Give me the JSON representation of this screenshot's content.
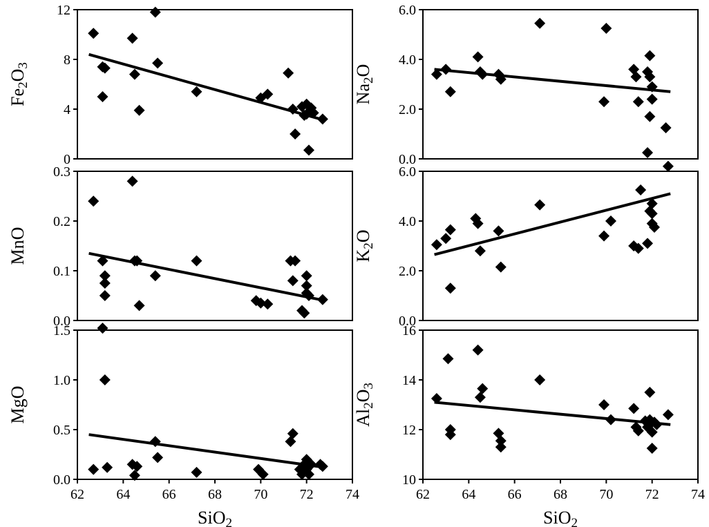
{
  "figure": {
    "background": "#ffffff",
    "marker_color": "#000000",
    "line_color": "#000000",
    "axis_color": "#000000",
    "xlabel": "SiO2",
    "xlabel_parts": [
      {
        "text": "SiO"
      },
      {
        "text": "2",
        "sub": true
      }
    ],
    "xlim": [
      62,
      74
    ],
    "xticks": [
      {
        "v": 62,
        "label": "62"
      },
      {
        "v": 64,
        "label": "64"
      },
      {
        "v": 66,
        "label": "66"
      },
      {
        "v": 68,
        "label": "68"
      },
      {
        "v": 70,
        "label": "70"
      },
      {
        "v": 72,
        "label": "72"
      },
      {
        "v": 74,
        "label": "74"
      }
    ]
  },
  "chart_data": [
    {
      "type": "scatter",
      "id": "fe2o3",
      "col": 0,
      "row": 0,
      "title": "",
      "ylabel": "Fe2O3",
      "ylabel_parts": [
        {
          "text": "Fe"
        },
        {
          "text": "2",
          "sub": true
        },
        {
          "text": "O"
        },
        {
          "text": "3",
          "sub": true
        }
      ],
      "ylim": [
        0,
        12
      ],
      "yticks": [
        {
          "v": 0,
          "label": "0"
        },
        {
          "v": 4,
          "label": "4"
        },
        {
          "v": 8,
          "label": "8"
        },
        {
          "v": 12,
          "label": "12"
        }
      ],
      "points": [
        [
          62.7,
          10.1
        ],
        [
          63.1,
          7.4
        ],
        [
          63.2,
          7.3
        ],
        [
          63.1,
          5.0
        ],
        [
          64.4,
          9.7
        ],
        [
          64.5,
          6.8
        ],
        [
          64.7,
          3.9
        ],
        [
          65.4,
          11.8
        ],
        [
          65.5,
          7.7
        ],
        [
          67.2,
          5.4
        ],
        [
          70.0,
          4.9
        ],
        [
          70.3,
          5.2
        ],
        [
          71.2,
          6.9
        ],
        [
          71.4,
          4.0
        ],
        [
          71.5,
          2.0
        ],
        [
          71.8,
          4.2
        ],
        [
          71.9,
          3.5
        ],
        [
          72.0,
          4.4
        ],
        [
          72.0,
          3.6
        ],
        [
          72.1,
          0.7
        ],
        [
          72.2,
          4.1
        ],
        [
          72.3,
          3.7
        ],
        [
          72.7,
          3.2
        ]
      ],
      "trend": {
        "x1": 62.5,
        "y1": 8.4,
        "x2": 72.8,
        "y2": 3.1
      }
    },
    {
      "type": "scatter",
      "id": "na2o",
      "col": 1,
      "row": 0,
      "title": "",
      "ylabel": "Na2O",
      "ylabel_parts": [
        {
          "text": "Na"
        },
        {
          "text": "2",
          "sub": true
        },
        {
          "text": "O"
        }
      ],
      "ylim": [
        0,
        6
      ],
      "yticks": [
        {
          "v": 0,
          "label": "0.0"
        },
        {
          "v": 2,
          "label": "2.0"
        },
        {
          "v": 4,
          "label": "4.0"
        },
        {
          "v": 6,
          "label": "6.0"
        }
      ],
      "points": [
        [
          62.6,
          3.4
        ],
        [
          63.0,
          3.6
        ],
        [
          63.2,
          2.7
        ],
        [
          64.4,
          4.1
        ],
        [
          64.5,
          3.5
        ],
        [
          64.6,
          3.4
        ],
        [
          65.3,
          3.4
        ],
        [
          65.4,
          3.2
        ],
        [
          67.1,
          5.45
        ],
        [
          69.9,
          2.3
        ],
        [
          70.0,
          5.25
        ],
        [
          71.2,
          3.6
        ],
        [
          71.3,
          3.3
        ],
        [
          71.4,
          2.3
        ],
        [
          71.8,
          3.5
        ],
        [
          71.9,
          4.15
        ],
        [
          71.9,
          3.3
        ],
        [
          72.0,
          2.9
        ],
        [
          72.0,
          2.4
        ],
        [
          71.9,
          1.7
        ],
        [
          71.8,
          0.25
        ],
        [
          72.6,
          1.25
        ]
      ],
      "trend": {
        "x1": 62.5,
        "y1": 3.6,
        "x2": 72.8,
        "y2": 2.7
      }
    },
    {
      "type": "scatter",
      "id": "mno",
      "col": 0,
      "row": 1,
      "title": "",
      "ylabel": "MnO",
      "ylabel_parts": [
        {
          "text": "MnO"
        }
      ],
      "ylim": [
        0,
        0.3
      ],
      "yticks": [
        {
          "v": 0,
          "label": "0.0"
        },
        {
          "v": 0.1,
          "label": "0.1"
        },
        {
          "v": 0.2,
          "label": "0.2"
        },
        {
          "v": 0.3,
          "label": "0.3"
        }
      ],
      "points": [
        [
          62.7,
          0.24
        ],
        [
          63.1,
          0.12
        ],
        [
          63.2,
          0.09
        ],
        [
          63.2,
          0.075
        ],
        [
          63.2,
          0.05
        ],
        [
          64.4,
          0.28
        ],
        [
          64.5,
          0.12
        ],
        [
          64.6,
          0.12
        ],
        [
          64.7,
          0.03
        ],
        [
          65.4,
          0.09
        ],
        [
          67.2,
          0.12
        ],
        [
          69.8,
          0.04
        ],
        [
          70.0,
          0.035
        ],
        [
          70.3,
          0.033
        ],
        [
          71.3,
          0.12
        ],
        [
          71.5,
          0.12
        ],
        [
          71.4,
          0.08
        ],
        [
          71.8,
          0.02
        ],
        [
          71.9,
          0.015
        ],
        [
          72.0,
          0.09
        ],
        [
          72.0,
          0.07
        ],
        [
          72.0,
          0.055
        ],
        [
          72.1,
          0.05
        ],
        [
          72.7,
          0.042
        ]
      ],
      "trend": {
        "x1": 62.5,
        "y1": 0.135,
        "x2": 72.8,
        "y2": 0.04
      }
    },
    {
      "type": "scatter",
      "id": "k2o",
      "col": 1,
      "row": 1,
      "title": "",
      "ylabel": "K2O",
      "ylabel_parts": [
        {
          "text": "K"
        },
        {
          "text": "2",
          "sub": true
        },
        {
          "text": "O"
        }
      ],
      "ylim": [
        0,
        6
      ],
      "yticks": [
        {
          "v": 0,
          "label": "0.0"
        },
        {
          "v": 2,
          "label": "2.0"
        },
        {
          "v": 4,
          "label": "4.0"
        },
        {
          "v": 6,
          "label": "6.0"
        }
      ],
      "points": [
        [
          62.6,
          3.05
        ],
        [
          63.0,
          3.3
        ],
        [
          63.2,
          3.65
        ],
        [
          63.2,
          1.3
        ],
        [
          64.3,
          4.1
        ],
        [
          64.4,
          3.9
        ],
        [
          64.5,
          2.8
        ],
        [
          65.3,
          3.6
        ],
        [
          65.4,
          2.15
        ],
        [
          67.1,
          4.65
        ],
        [
          69.9,
          3.4
        ],
        [
          70.2,
          4.0
        ],
        [
          71.2,
          3.0
        ],
        [
          71.4,
          2.9
        ],
        [
          71.5,
          5.25
        ],
        [
          71.9,
          4.4
        ],
        [
          72.0,
          4.7
        ],
        [
          72.0,
          4.3
        ],
        [
          72.0,
          3.9
        ],
        [
          72.1,
          3.75
        ],
        [
          71.8,
          3.1
        ],
        [
          72.7,
          6.2
        ]
      ],
      "trend": {
        "x1": 62.5,
        "y1": 2.65,
        "x2": 72.8,
        "y2": 5.1
      }
    },
    {
      "type": "scatter",
      "id": "mgo",
      "col": 0,
      "row": 2,
      "title": "",
      "ylabel": "MgO",
      "ylabel_parts": [
        {
          "text": "MgO"
        }
      ],
      "ylim": [
        0,
        1.5
      ],
      "yticks": [
        {
          "v": 0,
          "label": "0.0"
        },
        {
          "v": 0.5,
          "label": "0.5"
        },
        {
          "v": 1.0,
          "label": "1.0"
        },
        {
          "v": 1.5,
          "label": "1.5"
        }
      ],
      "points": [
        [
          62.7,
          0.1
        ],
        [
          63.1,
          1.52
        ],
        [
          63.2,
          1.0
        ],
        [
          63.3,
          0.12
        ],
        [
          64.4,
          0.15
        ],
        [
          64.5,
          0.04
        ],
        [
          64.6,
          0.13
        ],
        [
          65.4,
          0.38
        ],
        [
          65.5,
          0.22
        ],
        [
          67.2,
          0.07
        ],
        [
          69.9,
          0.1
        ],
        [
          70.1,
          0.05
        ],
        [
          71.3,
          0.38
        ],
        [
          71.4,
          0.46
        ],
        [
          71.7,
          0.1
        ],
        [
          71.8,
          0.05
        ],
        [
          71.9,
          0.15
        ],
        [
          72.0,
          0.2
        ],
        [
          72.0,
          0.1
        ],
        [
          72.1,
          0.05
        ],
        [
          72.2,
          0.15
        ],
        [
          72.6,
          0.15
        ],
        [
          72.7,
          0.13
        ]
      ],
      "trend": {
        "x1": 62.5,
        "y1": 0.45,
        "x2": 72.8,
        "y2": 0.12
      }
    },
    {
      "type": "scatter",
      "id": "al2o3",
      "col": 1,
      "row": 2,
      "title": "",
      "ylabel": "Al2O3",
      "ylabel_parts": [
        {
          "text": "Al"
        },
        {
          "text": "2",
          "sub": true
        },
        {
          "text": "O"
        },
        {
          "text": "3",
          "sub": true
        }
      ],
      "ylim": [
        10,
        16
      ],
      "yticks": [
        {
          "v": 10,
          "label": "10"
        },
        {
          "v": 12,
          "label": "12"
        },
        {
          "v": 14,
          "label": "14"
        },
        {
          "v": 16,
          "label": "16"
        }
      ],
      "points": [
        [
          62.6,
          13.25
        ],
        [
          63.1,
          14.85
        ],
        [
          63.2,
          12.0
        ],
        [
          63.2,
          11.8
        ],
        [
          64.4,
          15.2
        ],
        [
          64.5,
          13.3
        ],
        [
          64.6,
          13.65
        ],
        [
          65.3,
          11.85
        ],
        [
          65.4,
          11.55
        ],
        [
          65.4,
          11.3
        ],
        [
          67.1,
          14.0
        ],
        [
          69.9,
          13.0
        ],
        [
          70.2,
          12.4
        ],
        [
          71.2,
          12.85
        ],
        [
          71.3,
          12.1
        ],
        [
          71.4,
          11.95
        ],
        [
          71.7,
          12.35
        ],
        [
          71.8,
          12.1
        ],
        [
          71.9,
          13.5
        ],
        [
          71.9,
          12.4
        ],
        [
          72.0,
          12.3
        ],
        [
          72.0,
          11.9
        ],
        [
          72.0,
          11.25
        ],
        [
          72.1,
          12.3
        ],
        [
          72.2,
          12.2
        ],
        [
          72.7,
          12.6
        ]
      ],
      "trend": {
        "x1": 62.5,
        "y1": 13.1,
        "x2": 72.8,
        "y2": 12.2
      }
    }
  ]
}
